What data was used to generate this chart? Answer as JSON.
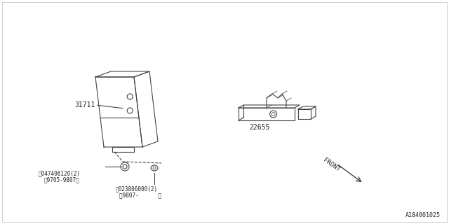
{
  "bg_color": "#ffffff",
  "line_color": "#444444",
  "text_color": "#222222",
  "part1_label": "31711",
  "part2_label": "22655",
  "screw1_line1": "Ⓢ047406120(2)",
  "screw1_line2": "（9705-9807）",
  "screw2_line1": "Ⓣ023806000(2)",
  "screw2_line2": "（9807-      ）",
  "front_label": "FRONT",
  "diagram_id": "A184001025",
  "figsize": [
    6.4,
    3.2
  ],
  "dpi": 100
}
